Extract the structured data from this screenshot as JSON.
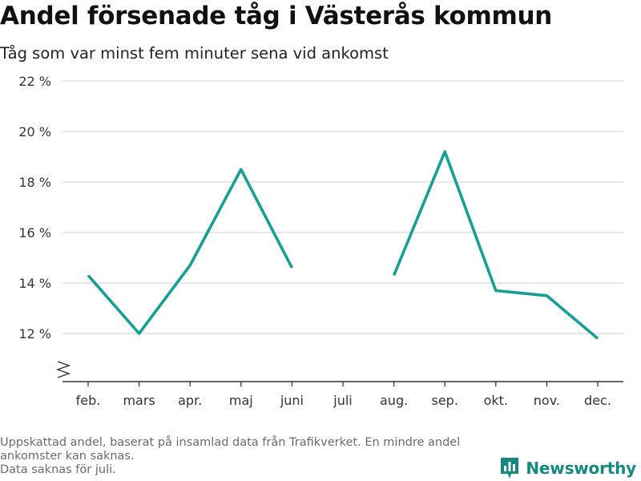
{
  "title": "Andel försenade tåg i Västerås kommun",
  "subtitle": "Tåg som var minst fem minuter sena vid ankomst",
  "footnote_lines": [
    "Uppskattad andel, baserat på insamlad data från Trafikverket. En mindre andel",
    "ankomster kan saknas.",
    "Data saknas för juli."
  ],
  "brand": "Newsworthy",
  "colors": {
    "line": "#16a095",
    "grid": "#d9d9d9",
    "axis": "#333333",
    "brand": "#14897f"
  },
  "chart_data": {
    "type": "line",
    "categories": [
      "feb.",
      "mars",
      "apr.",
      "maj",
      "juni",
      "juli",
      "aug.",
      "sep.",
      "okt.",
      "nov.",
      "dec."
    ],
    "series": [
      {
        "values": [
          14.3,
          12.0,
          14.7,
          18.5,
          14.6,
          null,
          14.3,
          19.2,
          13.7,
          13.5,
          11.8
        ]
      }
    ],
    "y_ticks": [
      12,
      14,
      16,
      18,
      20,
      22
    ],
    "y_tick_labels": [
      "12 %",
      "14 %",
      "16 %",
      "18 %",
      "20 %",
      "22 %"
    ],
    "ylim": [
      10.0,
      22
    ],
    "y_axis_break": true,
    "grid": true,
    "legend": "none"
  }
}
